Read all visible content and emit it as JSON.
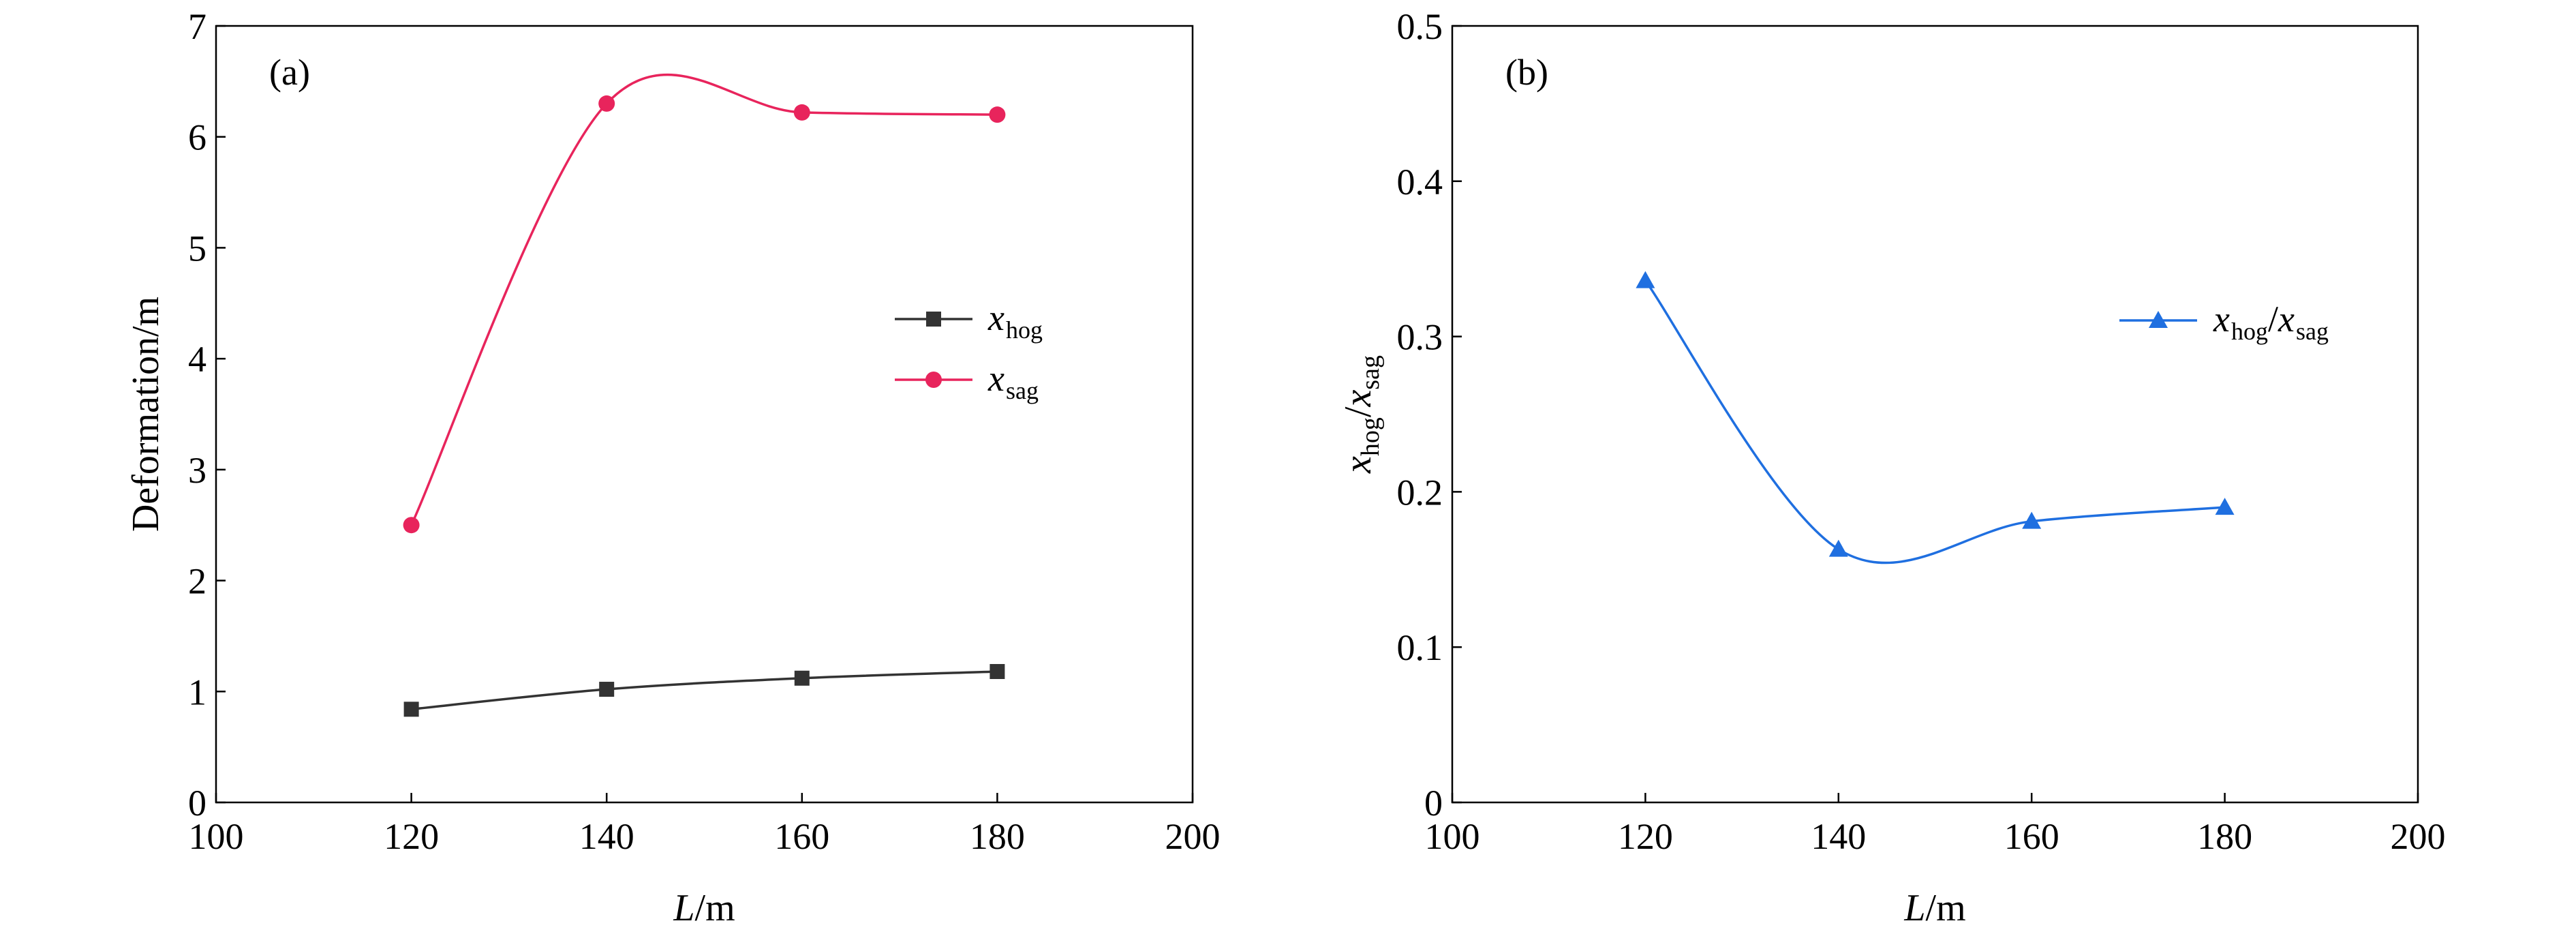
{
  "chart_data": [
    {
      "type": "line",
      "panel_label": "(a)",
      "xlabel": {
        "italic": "L",
        "rest": "/m"
      },
      "ylabel": "Deformation/m",
      "xlim": [
        100,
        200
      ],
      "ylim": [
        0,
        7
      ],
      "x_ticks": [
        100,
        120,
        140,
        160,
        180,
        200
      ],
      "y_ticks": [
        0,
        1,
        2,
        3,
        4,
        5,
        6,
        7
      ],
      "x": [
        120,
        140,
        160,
        180
      ],
      "legend_position": "center-right",
      "series": [
        {
          "name": "x_hog",
          "legend_main": "x",
          "legend_sub": "hog",
          "marker": "square",
          "color": "#333333",
          "values": [
            0.84,
            1.02,
            1.12,
            1.18
          ]
        },
        {
          "name": "x_sag",
          "legend_main": "x",
          "legend_sub": "sag",
          "marker": "circle",
          "color": "#e8245c",
          "values": [
            2.5,
            6.3,
            6.22,
            6.2
          ]
        }
      ]
    },
    {
      "type": "line",
      "panel_label": "(b)",
      "xlabel": {
        "italic": "L",
        "rest": "/m"
      },
      "ylabel": {
        "a": "x",
        "a_sub": "hog",
        "sep": "/",
        "b": "x",
        "b_sub": "sag"
      },
      "xlim": [
        100,
        200
      ],
      "ylim": [
        0,
        0.5
      ],
      "x_ticks": [
        100,
        120,
        140,
        160,
        180,
        200
      ],
      "y_ticks": [
        "0",
        "0.1",
        "0.2",
        "0.3",
        "0.4",
        "0.5"
      ],
      "x": [
        120,
        140,
        160,
        180
      ],
      "legend_position": "upper-right",
      "series": [
        {
          "name": "x_hog/x_sag",
          "legend_main": "x",
          "legend_sub": "hog",
          "legend_sep": "/",
          "legend_main2": "x",
          "legend_sub2": "sag",
          "marker": "triangle",
          "color": "#1f6fe0",
          "values": [
            0.336,
            0.163,
            0.181,
            0.19
          ]
        }
      ]
    }
  ]
}
